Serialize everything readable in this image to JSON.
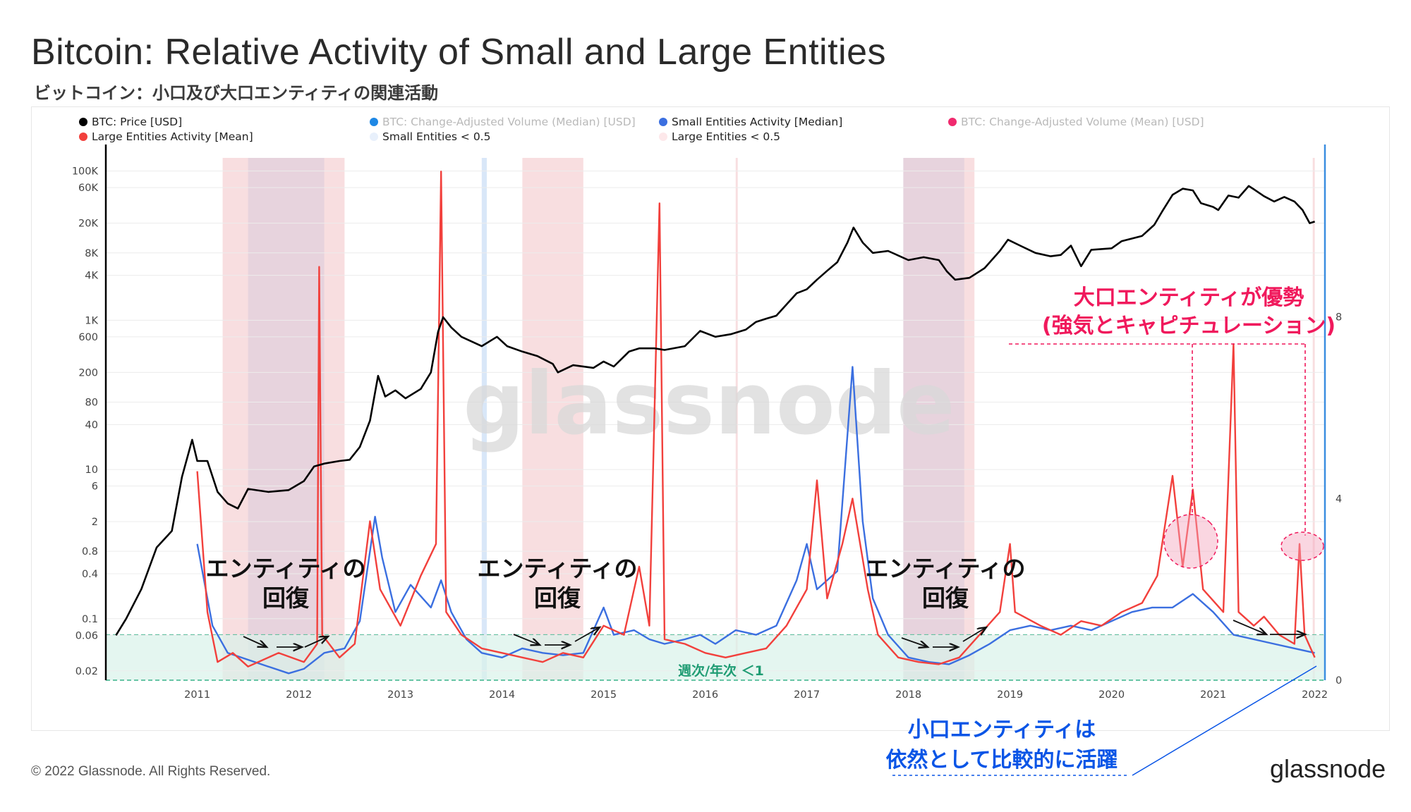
{
  "header": {
    "title": "Bitcoin: Relative Activity of Small and Large Entities",
    "subtitle": "ビットコイン：小口及び大口エンティティの関連活動"
  },
  "footer": {
    "copyright": "© 2022 Glassnode. All Rights Reserved.",
    "brand": "glassnode"
  },
  "watermark": "glassnode",
  "legend": [
    {
      "label": "BTC: Price [USD]",
      "color": "#000000",
      "dim": false
    },
    {
      "label": "BTC: Change-Adjusted Volume (Median) [USD]",
      "color": "#1e88e5",
      "dim": true
    },
    {
      "label": "Small Entities Activity [Median]",
      "color": "#3b6fe0",
      "dim": false
    },
    {
      "label": "BTC: Change-Adjusted Volume (Mean) [USD]",
      "color": "#f02a6e",
      "dim": true
    },
    {
      "label": "Large Entities Activity [Mean]",
      "color": "#f2403c",
      "dim": false
    },
    {
      "label": "Small Entities < 0.5",
      "color": "#e8f0fb",
      "dim": false
    },
    {
      "label": "Large Entities < 0.5",
      "color": "#fde8ea",
      "dim": false
    }
  ],
  "annotations": {
    "recovery_1": [
      "エンティティの",
      "回復"
    ],
    "recovery_2": [
      "エンティティの",
      "回復"
    ],
    "recovery_3": [
      "エンティティの",
      "回復"
    ],
    "large_dominant": [
      "大口エンティティが優勢",
      "(強気とキャピチュレーション)"
    ],
    "small_active": [
      "小口エンティティは",
      "依然として比較的に活躍"
    ],
    "ratio_band": "週次/年次 ＜1"
  },
  "colors": {
    "price": "#000000",
    "small": "#3b6fe0",
    "large": "#f2403c",
    "band": "#d9f2ea",
    "highlight": "#f4a3bd",
    "shade_small": "#b9d3f2",
    "shade_large": "#f2c2c6"
  },
  "chart_data": {
    "type": "line",
    "title": "Bitcoin: Relative Activity of Small and Large Entities",
    "x_range": [
      2010.6,
      2022.6
    ],
    "x_ticks": [
      "2011",
      "2012",
      "2013",
      "2014",
      "2015",
      "2016",
      "2017",
      "2018",
      "2019",
      "2020",
      "2021",
      "2022"
    ],
    "y_left": {
      "scale": "log",
      "unit": "USD",
      "range": [
        0.015,
        150000
      ],
      "ticks": [
        {
          "value": 100000,
          "label": "100K"
        },
        {
          "value": 60000,
          "label": "60K"
        },
        {
          "value": 20000,
          "label": "20K"
        },
        {
          "value": 8000,
          "label": "8K"
        },
        {
          "value": 4000,
          "label": "4K"
        },
        {
          "value": 1000,
          "label": "1K"
        },
        {
          "value": 600,
          "label": "600"
        },
        {
          "value": 200,
          "label": "200"
        },
        {
          "value": 80,
          "label": "80"
        },
        {
          "value": 40,
          "label": "40"
        },
        {
          "value": 10,
          "label": "10"
        },
        {
          "value": 6,
          "label": "6"
        },
        {
          "value": 2,
          "label": "2"
        },
        {
          "value": 0.8,
          "label": "0.8"
        },
        {
          "value": 0.4,
          "label": "0.4"
        },
        {
          "value": 0.1,
          "label": "0.1"
        },
        {
          "value": 0.06,
          "label": "0.06"
        },
        {
          "value": 0.02,
          "label": "0.02"
        }
      ]
    },
    "y_right": {
      "scale": "linear",
      "range": [
        0,
        11.5
      ],
      "ticks": [
        0,
        4,
        8
      ]
    },
    "ratio_threshold": 1,
    "series": [
      {
        "name": "BTC: Price [USD]",
        "axis": "left",
        "color": "#000000",
        "points": [
          [
            2010.7,
            0.06
          ],
          [
            2010.8,
            0.1
          ],
          [
            2010.95,
            0.25
          ],
          [
            2011.1,
            0.9
          ],
          [
            2011.25,
            1.5
          ],
          [
            2011.35,
            8
          ],
          [
            2011.45,
            25
          ],
          [
            2011.5,
            13
          ],
          [
            2011.6,
            13
          ],
          [
            2011.7,
            5
          ],
          [
            2011.8,
            3.5
          ],
          [
            2011.9,
            3
          ],
          [
            2012.0,
            5.5
          ],
          [
            2012.2,
            5
          ],
          [
            2012.4,
            5.3
          ],
          [
            2012.55,
            7
          ],
          [
            2012.65,
            11
          ],
          [
            2012.75,
            12
          ],
          [
            2012.9,
            13
          ],
          [
            2013.0,
            13.5
          ],
          [
            2013.1,
            20
          ],
          [
            2013.2,
            45
          ],
          [
            2013.28,
            180
          ],
          [
            2013.35,
            95
          ],
          [
            2013.45,
            115
          ],
          [
            2013.55,
            90
          ],
          [
            2013.7,
            120
          ],
          [
            2013.8,
            200
          ],
          [
            2013.87,
            700
          ],
          [
            2013.92,
            1100
          ],
          [
            2014.0,
            800
          ],
          [
            2014.1,
            600
          ],
          [
            2014.3,
            450
          ],
          [
            2014.45,
            600
          ],
          [
            2014.55,
            450
          ],
          [
            2014.7,
            380
          ],
          [
            2014.85,
            330
          ],
          [
            2015.0,
            260
          ],
          [
            2015.05,
            200
          ],
          [
            2015.2,
            250
          ],
          [
            2015.4,
            230
          ],
          [
            2015.5,
            280
          ],
          [
            2015.6,
            240
          ],
          [
            2015.75,
            380
          ],
          [
            2015.85,
            420
          ],
          [
            2016.0,
            420
          ],
          [
            2016.1,
            400
          ],
          [
            2016.3,
            450
          ],
          [
            2016.45,
            720
          ],
          [
            2016.6,
            600
          ],
          [
            2016.75,
            650
          ],
          [
            2016.9,
            750
          ],
          [
            2017.0,
            950
          ],
          [
            2017.1,
            1050
          ],
          [
            2017.2,
            1150
          ],
          [
            2017.4,
            2300
          ],
          [
            2017.5,
            2600
          ],
          [
            2017.6,
            3500
          ],
          [
            2017.7,
            4600
          ],
          [
            2017.8,
            6000
          ],
          [
            2017.9,
            11000
          ],
          [
            2017.96,
            17500
          ],
          [
            2018.05,
            11000
          ],
          [
            2018.15,
            8000
          ],
          [
            2018.3,
            8500
          ],
          [
            2018.5,
            6400
          ],
          [
            2018.65,
            7000
          ],
          [
            2018.8,
            6400
          ],
          [
            2018.88,
            4500
          ],
          [
            2018.96,
            3500
          ],
          [
            2019.1,
            3700
          ],
          [
            2019.25,
            5000
          ],
          [
            2019.4,
            8500
          ],
          [
            2019.48,
            12000
          ],
          [
            2019.6,
            10000
          ],
          [
            2019.75,
            8000
          ],
          [
            2019.9,
            7200
          ],
          [
            2020.0,
            7500
          ],
          [
            2020.1,
            10000
          ],
          [
            2020.2,
            5300
          ],
          [
            2020.3,
            8800
          ],
          [
            2020.5,
            9200
          ],
          [
            2020.6,
            11500
          ],
          [
            2020.8,
            13500
          ],
          [
            2020.92,
            19000
          ],
          [
            2021.0,
            29000
          ],
          [
            2021.1,
            48000
          ],
          [
            2021.2,
            58000
          ],
          [
            2021.3,
            55000
          ],
          [
            2021.38,
            37000
          ],
          [
            2021.5,
            33000
          ],
          [
            2021.55,
            30000
          ],
          [
            2021.65,
            47000
          ],
          [
            2021.75,
            44000
          ],
          [
            2021.85,
            63000
          ],
          [
            2021.9,
            57000
          ],
          [
            2022.0,
            46000
          ],
          [
            2022.1,
            39000
          ],
          [
            2022.2,
            45000
          ],
          [
            2022.3,
            39000
          ],
          [
            2022.38,
            30000
          ],
          [
            2022.45,
            20000
          ],
          [
            2022.5,
            21000
          ]
        ]
      },
      {
        "name": "Small Entities Activity [Median]",
        "axis": "right",
        "color": "#3b6fe0",
        "points": [
          [
            2011.5,
            3.0
          ],
          [
            2011.65,
            1.2
          ],
          [
            2011.8,
            0.6
          ],
          [
            2012.0,
            0.45
          ],
          [
            2012.2,
            0.3
          ],
          [
            2012.4,
            0.15
          ],
          [
            2012.55,
            0.25
          ],
          [
            2012.75,
            0.6
          ],
          [
            2012.95,
            0.7
          ],
          [
            2013.1,
            1.3
          ],
          [
            2013.25,
            3.6
          ],
          [
            2013.32,
            2.7
          ],
          [
            2013.45,
            1.5
          ],
          [
            2013.6,
            2.1
          ],
          [
            2013.8,
            1.6
          ],
          [
            2013.9,
            2.2
          ],
          [
            2014.0,
            1.5
          ],
          [
            2014.15,
            0.9
          ],
          [
            2014.3,
            0.6
          ],
          [
            2014.5,
            0.5
          ],
          [
            2014.7,
            0.7
          ],
          [
            2014.9,
            0.6
          ],
          [
            2015.1,
            0.55
          ],
          [
            2015.3,
            0.6
          ],
          [
            2015.5,
            1.6
          ],
          [
            2015.6,
            1.0
          ],
          [
            2015.8,
            1.1
          ],
          [
            2015.95,
            0.9
          ],
          [
            2016.1,
            0.8
          ],
          [
            2016.3,
            0.9
          ],
          [
            2016.45,
            1.0
          ],
          [
            2016.6,
            0.8
          ],
          [
            2016.8,
            1.1
          ],
          [
            2017.0,
            1.0
          ],
          [
            2017.2,
            1.2
          ],
          [
            2017.4,
            2.2
          ],
          [
            2017.5,
            3.0
          ],
          [
            2017.6,
            2.0
          ],
          [
            2017.8,
            2.4
          ],
          [
            2017.95,
            6.9
          ],
          [
            2018.05,
            3.5
          ],
          [
            2018.15,
            1.8
          ],
          [
            2018.3,
            1.0
          ],
          [
            2018.5,
            0.5
          ],
          [
            2018.7,
            0.4
          ],
          [
            2018.9,
            0.35
          ],
          [
            2019.1,
            0.55
          ],
          [
            2019.3,
            0.8
          ],
          [
            2019.5,
            1.1
          ],
          [
            2019.7,
            1.2
          ],
          [
            2019.9,
            1.1
          ],
          [
            2020.1,
            1.2
          ],
          [
            2020.3,
            1.1
          ],
          [
            2020.5,
            1.3
          ],
          [
            2020.7,
            1.5
          ],
          [
            2020.9,
            1.6
          ],
          [
            2021.1,
            1.6
          ],
          [
            2021.3,
            1.9
          ],
          [
            2021.5,
            1.5
          ],
          [
            2021.7,
            1.0
          ],
          [
            2021.9,
            0.9
          ],
          [
            2022.1,
            0.8
          ],
          [
            2022.3,
            0.7
          ],
          [
            2022.5,
            0.6
          ]
        ]
      },
      {
        "name": "Large Entities Activity [Mean]",
        "axis": "right",
        "color": "#f2403c",
        "points": [
          [
            2011.5,
            4.6
          ],
          [
            2011.6,
            1.5
          ],
          [
            2011.7,
            0.4
          ],
          [
            2011.85,
            0.6
          ],
          [
            2012.0,
            0.3
          ],
          [
            2012.3,
            0.6
          ],
          [
            2012.55,
            0.4
          ],
          [
            2012.68,
            0.8
          ],
          [
            2012.7,
            9.1
          ],
          [
            2012.73,
            1.0
          ],
          [
            2012.9,
            0.5
          ],
          [
            2013.05,
            0.8
          ],
          [
            2013.2,
            3.5
          ],
          [
            2013.3,
            2.0
          ],
          [
            2013.5,
            1.2
          ],
          [
            2013.7,
            2.3
          ],
          [
            2013.85,
            3.0
          ],
          [
            2013.9,
            11.2
          ],
          [
            2013.95,
            1.5
          ],
          [
            2014.1,
            1.0
          ],
          [
            2014.3,
            0.7
          ],
          [
            2014.5,
            0.6
          ],
          [
            2014.7,
            0.5
          ],
          [
            2014.9,
            0.4
          ],
          [
            2015.1,
            0.6
          ],
          [
            2015.3,
            0.5
          ],
          [
            2015.5,
            1.2
          ],
          [
            2015.7,
            1.0
          ],
          [
            2015.85,
            2.5
          ],
          [
            2015.95,
            1.2
          ],
          [
            2016.05,
            10.5
          ],
          [
            2016.1,
            0.9
          ],
          [
            2016.3,
            0.8
          ],
          [
            2016.5,
            0.6
          ],
          [
            2016.7,
            0.5
          ],
          [
            2016.9,
            0.6
          ],
          [
            2017.1,
            0.7
          ],
          [
            2017.3,
            1.2
          ],
          [
            2017.5,
            2.0
          ],
          [
            2017.6,
            4.4
          ],
          [
            2017.7,
            1.8
          ],
          [
            2017.85,
            3.0
          ],
          [
            2017.95,
            4.0
          ],
          [
            2018.1,
            2.0
          ],
          [
            2018.2,
            1.0
          ],
          [
            2018.4,
            0.5
          ],
          [
            2018.6,
            0.4
          ],
          [
            2018.8,
            0.35
          ],
          [
            2019.0,
            0.5
          ],
          [
            2019.2,
            1.0
          ],
          [
            2019.4,
            1.5
          ],
          [
            2019.5,
            3.0
          ],
          [
            2019.55,
            1.5
          ],
          [
            2019.8,
            1.2
          ],
          [
            2020.0,
            1.0
          ],
          [
            2020.2,
            1.3
          ],
          [
            2020.4,
            1.2
          ],
          [
            2020.6,
            1.5
          ],
          [
            2020.8,
            1.7
          ],
          [
            2020.95,
            2.3
          ],
          [
            2021.1,
            4.5
          ],
          [
            2021.2,
            2.5
          ],
          [
            2021.3,
            4.2
          ],
          [
            2021.4,
            2.0
          ],
          [
            2021.6,
            1.5
          ],
          [
            2021.7,
            7.4
          ],
          [
            2021.75,
            1.5
          ],
          [
            2021.9,
            1.2
          ],
          [
            2022.0,
            1.4
          ],
          [
            2022.15,
            1.0
          ],
          [
            2022.3,
            0.8
          ],
          [
            2022.35,
            3.0
          ],
          [
            2022.4,
            1.0
          ],
          [
            2022.5,
            0.5
          ]
        ]
      }
    ],
    "shaded_periods_small": [
      [
        2012.0,
        2012.75
      ],
      [
        2014.3,
        2014.35
      ],
      [
        2018.45,
        2019.05
      ]
    ],
    "shaded_periods_large": [
      [
        2011.75,
        2012.95
      ],
      [
        2014.7,
        2015.3
      ],
      [
        2016.8,
        2016.82
      ],
      [
        2018.45,
        2019.15
      ],
      [
        2022.48,
        2022.5
      ]
    ]
  }
}
